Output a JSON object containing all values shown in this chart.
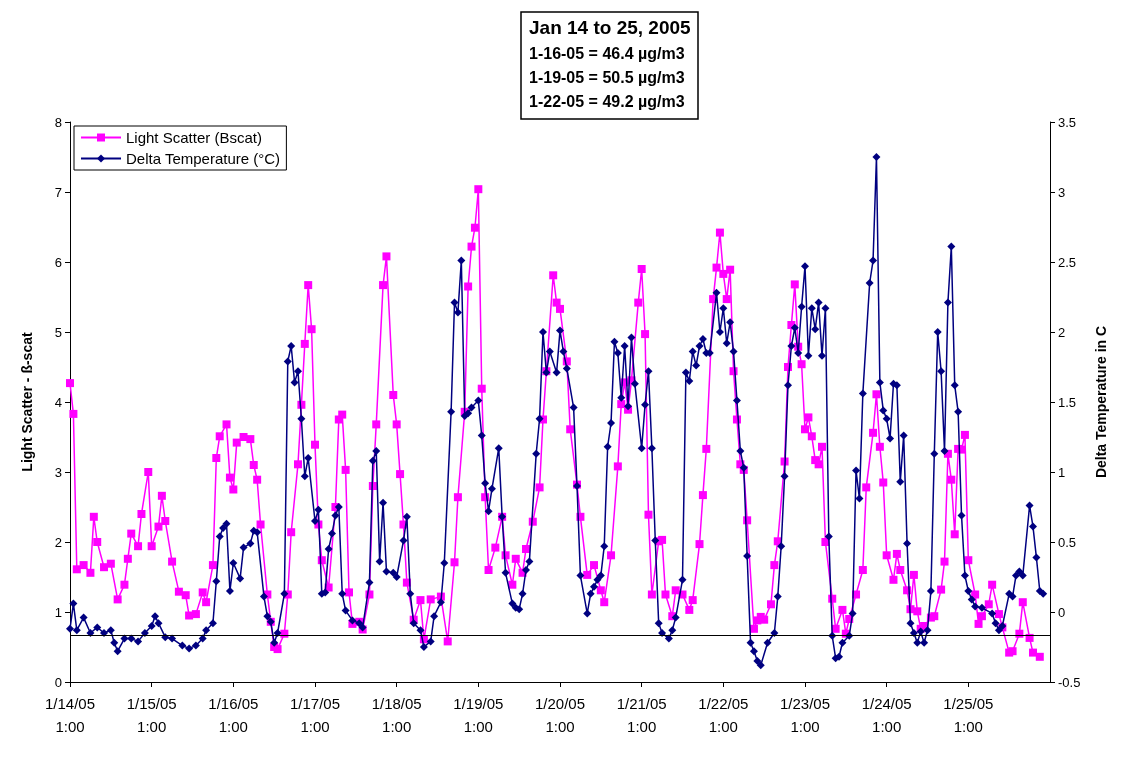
{
  "chart_data": {
    "type": "line",
    "title": "Jan 14 to 25, 2005",
    "subtitle": "1-16-05 = 46.4 µg/m3\n1-19-05 = 50.5 µg/m3\n1-22-05 = 49.2 µg/m3",
    "ylabel": "Light Scatter - ß-scat",
    "y2label": "Delta Temperature in C",
    "legend": "top left",
    "grid": false,
    "xlim": [
      "2005-01-14T01:00",
      "2005-01-26T01:00"
    ],
    "xticks": [
      {
        "value": "2005-01-14T01:00",
        "label": "1/14/05\n1:00"
      },
      {
        "value": "2005-01-15T01:00",
        "label": "1/15/05\n1:00"
      },
      {
        "value": "2005-01-16T01:00",
        "label": "1/16/05\n1:00"
      },
      {
        "value": "2005-01-17T01:00",
        "label": "1/17/05\n1:00"
      },
      {
        "value": "2005-01-18T01:00",
        "label": "1/18/05\n1:00"
      },
      {
        "value": "2005-01-19T01:00",
        "label": "1/19/05\n1:00"
      },
      {
        "value": "2005-01-20T01:00",
        "label": "1/20/05\n1:00"
      },
      {
        "value": "2005-01-21T01:00",
        "label": "1/21/05\n1:00"
      },
      {
        "value": "2005-01-22T01:00",
        "label": "1/22/05\n1:00"
      },
      {
        "value": "2005-01-23T01:00",
        "label": "1/23/05\n1:00"
      },
      {
        "value": "2005-01-24T01:00",
        "label": "1/24/05\n1:00"
      },
      {
        "value": "2005-01-25T01:00",
        "label": "1/25/05\n1:00"
      }
    ],
    "ylim": [
      0,
      8
    ],
    "yticks": [
      0,
      1,
      2,
      3,
      4,
      5,
      6,
      7,
      8
    ],
    "y2lim": [
      -0.5,
      3.5
    ],
    "y2ticks": [
      -0.5,
      0,
      0.5,
      1,
      1.5,
      2,
      2.5,
      3,
      3.5
    ],
    "ref_lines": [
      {
        "axis": "y",
        "value": 0.67,
        "color": "#000000"
      }
    ],
    "series": [
      {
        "name": "Light Scatter (Bscat)",
        "color": "#ff00ff",
        "marker": "square",
        "x": [
          "2005-01-14T01:00",
          "2005-01-14T02:00",
          "2005-01-14T03:00",
          "2005-01-14T05:00",
          "2005-01-14T07:00",
          "2005-01-14T08:00",
          "2005-01-14T09:00",
          "2005-01-14T11:00",
          "2005-01-14T13:00",
          "2005-01-14T15:00",
          "2005-01-14T17:00",
          "2005-01-14T18:00",
          "2005-01-14T19:00",
          "2005-01-14T21:00",
          "2005-01-14T22:00",
          "2005-01-15T00:00",
          "2005-01-15T01:00",
          "2005-01-15T03:00",
          "2005-01-15T04:00",
          "2005-01-15T05:00",
          "2005-01-15T07:00",
          "2005-01-15T09:00",
          "2005-01-15T11:00",
          "2005-01-15T12:00",
          "2005-01-15T14:00",
          "2005-01-15T16:00",
          "2005-01-15T17:00",
          "2005-01-15T19:00",
          "2005-01-15T20:00",
          "2005-01-15T21:00",
          "2005-01-15T23:00",
          "2005-01-16T00:00",
          "2005-01-16T01:00",
          "2005-01-16T02:00",
          "2005-01-16T04:00",
          "2005-01-16T06:00",
          "2005-01-16T07:00",
          "2005-01-16T08:00",
          "2005-01-16T09:00",
          "2005-01-16T11:00",
          "2005-01-16T12:00",
          "2005-01-16T13:00",
          "2005-01-16T14:00",
          "2005-01-16T16:00",
          "2005-01-16T17:00",
          "2005-01-16T18:00",
          "2005-01-16T20:00",
          "2005-01-16T21:00",
          "2005-01-16T22:00",
          "2005-01-16T23:00",
          "2005-01-17T00:00",
          "2005-01-17T01:00",
          "2005-01-17T02:00",
          "2005-01-17T03:00",
          "2005-01-17T05:00",
          "2005-01-17T07:00",
          "2005-01-17T08:00",
          "2005-01-17T09:00",
          "2005-01-17T10:00",
          "2005-01-17T11:00",
          "2005-01-17T12:00",
          "2005-01-17T14:00",
          "2005-01-17T15:00",
          "2005-01-17T17:00",
          "2005-01-17T18:00",
          "2005-01-17T19:00",
          "2005-01-17T21:00",
          "2005-01-17T22:00",
          "2005-01-18T00:00",
          "2005-01-18T01:00",
          "2005-01-18T02:00",
          "2005-01-18T03:00",
          "2005-01-18T04:00",
          "2005-01-18T06:00",
          "2005-01-18T08:00",
          "2005-01-18T09:00",
          "2005-01-18T11:00",
          "2005-01-18T14:00",
          "2005-01-18T16:00",
          "2005-01-18T18:00",
          "2005-01-18T19:00",
          "2005-01-18T21:00",
          "2005-01-18T22:00",
          "2005-01-18T23:00",
          "2005-01-19T00:00",
          "2005-01-19T01:00",
          "2005-01-19T02:00",
          "2005-01-19T03:00",
          "2005-01-19T04:00",
          "2005-01-19T06:00",
          "2005-01-19T08:00",
          "2005-01-19T09:00",
          "2005-01-19T11:00",
          "2005-01-19T12:00",
          "2005-01-19T14:00",
          "2005-01-19T15:00",
          "2005-01-19T17:00",
          "2005-01-19T19:00",
          "2005-01-19T20:00",
          "2005-01-19T21:00",
          "2005-01-19T23:00",
          "2005-01-20T00:00",
          "2005-01-20T01:00",
          "2005-01-20T03:00",
          "2005-01-20T04:00",
          "2005-01-20T06:00",
          "2005-01-20T07:00",
          "2005-01-20T09:00",
          "2005-01-20T11:00",
          "2005-01-20T13:00",
          "2005-01-20T14:00",
          "2005-01-20T16:00",
          "2005-01-20T18:00",
          "2005-01-20T19:00",
          "2005-01-20T20:00",
          "2005-01-20T21:00",
          "2005-01-20T22:00",
          "2005-01-21T00:00",
          "2005-01-21T01:00",
          "2005-01-21T02:00",
          "2005-01-21T03:00",
          "2005-01-21T04:00",
          "2005-01-21T06:00",
          "2005-01-21T07:00",
          "2005-01-21T08:00",
          "2005-01-21T10:00",
          "2005-01-21T11:00",
          "2005-01-21T13:00",
          "2005-01-21T15:00",
          "2005-01-21T16:00",
          "2005-01-21T18:00",
          "2005-01-21T19:00",
          "2005-01-21T20:00",
          "2005-01-21T22:00",
          "2005-01-21T23:00",
          "2005-01-22T00:00",
          "2005-01-22T01:00",
          "2005-01-22T02:00",
          "2005-01-22T03:00",
          "2005-01-22T04:00",
          "2005-01-22T05:00",
          "2005-01-22T06:00",
          "2005-01-22T07:00",
          "2005-01-22T08:00",
          "2005-01-22T10:00",
          "2005-01-22T11:00",
          "2005-01-22T12:00",
          "2005-01-22T13:00",
          "2005-01-22T15:00",
          "2005-01-22T16:00",
          "2005-01-22T17:00",
          "2005-01-22T19:00",
          "2005-01-22T20:00",
          "2005-01-22T21:00",
          "2005-01-22T22:00",
          "2005-01-22T23:00",
          "2005-01-23T00:00",
          "2005-01-23T01:00",
          "2005-01-23T02:00",
          "2005-01-23T03:00",
          "2005-01-23T04:00",
          "2005-01-23T05:00",
          "2005-01-23T06:00",
          "2005-01-23T07:00",
          "2005-01-23T09:00",
          "2005-01-23T10:00",
          "2005-01-23T12:00",
          "2005-01-23T13:00",
          "2005-01-23T14:00",
          "2005-01-23T16:00",
          "2005-01-23T18:00",
          "2005-01-23T19:00",
          "2005-01-23T21:00",
          "2005-01-23T22:00",
          "2005-01-23T23:00",
          "2005-01-24T00:00",
          "2005-01-24T01:00",
          "2005-01-24T03:00",
          "2005-01-24T04:00",
          "2005-01-24T05:00",
          "2005-01-24T07:00",
          "2005-01-24T08:00",
          "2005-01-24T09:00",
          "2005-01-24T10:00",
          "2005-01-24T11:00",
          "2005-01-24T12:00",
          "2005-01-24T14:00",
          "2005-01-24T15:00",
          "2005-01-24T17:00",
          "2005-01-24T18:00",
          "2005-01-24T19:00",
          "2005-01-24T20:00",
          "2005-01-24T21:00",
          "2005-01-24T22:00",
          "2005-01-24T23:00",
          "2005-01-25T00:00",
          "2005-01-25T01:00",
          "2005-01-25T03:00",
          "2005-01-25T04:00",
          "2005-01-25T05:00",
          "2005-01-25T07:00",
          "2005-01-25T08:00",
          "2005-01-25T10:00",
          "2005-01-25T11:00",
          "2005-01-25T13:00",
          "2005-01-25T14:00",
          "2005-01-25T16:00",
          "2005-01-25T17:00",
          "2005-01-25T19:00",
          "2005-01-25T20:00",
          "2005-01-25T22:00"
        ],
        "values": [
          4.27,
          3.83,
          1.61,
          1.67,
          1.56,
          2.36,
          2.0,
          1.64,
          1.69,
          1.18,
          1.39,
          1.76,
          2.12,
          1.94,
          2.4,
          3.0,
          1.94,
          2.22,
          2.66,
          2.3,
          1.72,
          1.29,
          1.24,
          0.95,
          0.97,
          1.28,
          1.14,
          1.67,
          3.2,
          3.51,
          3.68,
          2.92,
          2.75,
          3.42,
          3.5,
          3.47,
          3.1,
          2.89,
          2.25,
          1.25,
          0.86,
          0.5,
          0.47,
          0.69,
          1.25,
          2.14,
          3.11,
          3.96,
          4.83,
          5.67,
          5.04,
          3.39,
          2.25,
          1.74,
          1.35,
          2.5,
          3.75,
          3.82,
          3.03,
          1.28,
          0.83,
          0.86,
          0.75,
          1.25,
          2.8,
          3.68,
          5.67,
          6.08,
          4.1,
          3.68,
          2.97,
          2.25,
          1.42,
          0.89,
          1.17,
          0.61,
          1.18,
          1.22,
          0.58,
          1.71,
          2.64,
          3.86,
          5.65,
          6.22,
          6.49,
          7.04,
          4.19,
          2.64,
          1.6,
          1.92,
          2.36,
          1.81,
          1.39,
          1.76,
          1.56,
          1.9,
          2.29,
          2.78,
          3.75,
          4.44,
          5.81,
          5.42,
          5.33,
          4.58,
          3.61,
          2.82,
          2.36,
          1.53,
          1.67,
          1.31,
          1.14,
          1.81,
          3.08,
          3.97,
          4.28,
          3.89,
          4.31,
          5.42,
          5.9,
          4.97,
          2.39,
          1.25,
          2.01,
          2.03,
          1.25,
          0.94,
          1.31,
          1.25,
          1.03,
          1.17,
          1.97,
          2.67,
          3.33,
          5.47,
          5.92,
          6.42,
          5.83,
          5.47,
          5.89,
          4.44,
          3.75,
          3.11,
          3.03,
          2.31,
          0.76,
          0.88,
          0.93,
          0.89,
          1.11,
          1.67,
          2.01,
          3.15,
          4.5,
          5.1,
          5.68,
          4.79,
          4.54,
          3.61,
          3.78,
          3.51,
          3.17,
          3.11,
          3.36,
          2.0,
          1.19,
          0.76,
          1.03,
          0.69,
          0.9,
          1.25,
          1.6,
          2.78,
          3.56,
          4.11,
          3.36,
          2.85,
          1.81,
          1.46,
          1.83,
          1.6,
          1.31,
          1.04,
          1.53,
          1.01,
          0.76,
          0.8,
          0.92,
          0.94,
          1.32,
          1.72,
          3.26,
          2.89,
          2.11,
          3.33,
          3.32,
          3.53,
          1.74,
          1.25,
          0.83,
          0.94,
          1.11,
          1.39,
          0.97,
          0.78,
          0.42,
          0.44,
          0.69,
          1.14,
          0.63,
          0.42,
          0.36
        ]
      },
      {
        "name": "Delta Temperature (°C)",
        "color": "#000080",
        "marker": "diamond",
        "axis": "y2",
        "x": [
          "2005-01-14T01:00",
          "2005-01-14T02:00",
          "2005-01-14T03:00",
          "2005-01-14T05:00",
          "2005-01-14T07:00",
          "2005-01-14T09:00",
          "2005-01-14T11:00",
          "2005-01-14T13:00",
          "2005-01-14T14:00",
          "2005-01-14T15:00",
          "2005-01-14T17:00",
          "2005-01-14T19:00",
          "2005-01-14T21:00",
          "2005-01-14T23:00",
          "2005-01-15T01:00",
          "2005-01-15T02:00",
          "2005-01-15T03:00",
          "2005-01-15T05:00",
          "2005-01-15T07:00",
          "2005-01-15T10:00",
          "2005-01-15T12:00",
          "2005-01-15T14:00",
          "2005-01-15T16:00",
          "2005-01-15T17:00",
          "2005-01-15T19:00",
          "2005-01-15T20:00",
          "2005-01-15T21:00",
          "2005-01-15T22:00",
          "2005-01-15T23:00",
          "2005-01-16T00:00",
          "2005-01-16T01:00",
          "2005-01-16T03:00",
          "2005-01-16T04:00",
          "2005-01-16T06:00",
          "2005-01-16T07:00",
          "2005-01-16T08:00",
          "2005-01-16T10:00",
          "2005-01-16T11:00",
          "2005-01-16T12:00",
          "2005-01-16T13:00",
          "2005-01-16T14:00",
          "2005-01-16T16:00",
          "2005-01-16T17:00",
          "2005-01-16T18:00",
          "2005-01-16T19:00",
          "2005-01-16T20:00",
          "2005-01-16T21:00",
          "2005-01-16T22:00",
          "2005-01-16T23:00",
          "2005-01-17T01:00",
          "2005-01-17T02:00",
          "2005-01-17T03:00",
          "2005-01-17T04:00",
          "2005-01-17T05:00",
          "2005-01-17T06:00",
          "2005-01-17T07:00",
          "2005-01-17T08:00",
          "2005-01-17T09:00",
          "2005-01-17T10:00",
          "2005-01-17T12:00",
          "2005-01-17T14:00",
          "2005-01-17T15:00",
          "2005-01-17T17:00",
          "2005-01-17T18:00",
          "2005-01-17T19:00",
          "2005-01-17T20:00",
          "2005-01-17T21:00",
          "2005-01-17T22:00",
          "2005-01-18T00:00",
          "2005-01-18T01:00",
          "2005-01-18T03:00",
          "2005-01-18T04:00",
          "2005-01-18T05:00",
          "2005-01-18T06:00",
          "2005-01-18T08:00",
          "2005-01-18T09:00",
          "2005-01-18T11:00",
          "2005-01-18T12:00",
          "2005-01-18T14:00",
          "2005-01-18T15:00",
          "2005-01-18T17:00",
          "2005-01-18T18:00",
          "2005-01-18T19:00",
          "2005-01-18T20:00",
          "2005-01-18T21:00",
          "2005-01-18T22:00",
          "2005-01-18T23:00",
          "2005-01-19T01:00",
          "2005-01-19T02:00",
          "2005-01-19T03:00",
          "2005-01-19T04:00",
          "2005-01-19T05:00",
          "2005-01-19T07:00",
          "2005-01-19T08:00",
          "2005-01-19T09:00",
          "2005-01-19T11:00",
          "2005-01-19T12:00",
          "2005-01-19T13:00",
          "2005-01-19T14:00",
          "2005-01-19T15:00",
          "2005-01-19T16:00",
          "2005-01-19T18:00",
          "2005-01-19T19:00",
          "2005-01-19T20:00",
          "2005-01-19T21:00",
          "2005-01-19T22:00",
          "2005-01-20T00:00",
          "2005-01-20T01:00",
          "2005-01-20T02:00",
          "2005-01-20T03:00",
          "2005-01-20T05:00",
          "2005-01-20T06:00",
          "2005-01-20T07:00",
          "2005-01-20T09:00",
          "2005-01-20T10:00",
          "2005-01-20T11:00",
          "2005-01-20T12:00",
          "2005-01-20T13:00",
          "2005-01-20T14:00",
          "2005-01-20T15:00",
          "2005-01-20T16:00",
          "2005-01-20T17:00",
          "2005-01-20T18:00",
          "2005-01-20T19:00",
          "2005-01-20T20:00",
          "2005-01-20T21:00",
          "2005-01-20T22:00",
          "2005-01-20T23:00",
          "2005-01-21T01:00",
          "2005-01-21T02:00",
          "2005-01-21T03:00",
          "2005-01-21T04:00",
          "2005-01-21T05:00",
          "2005-01-21T06:00",
          "2005-01-21T07:00",
          "2005-01-21T09:00",
          "2005-01-21T10:00",
          "2005-01-21T11:00",
          "2005-01-21T13:00",
          "2005-01-21T14:00",
          "2005-01-21T15:00",
          "2005-01-21T16:00",
          "2005-01-21T17:00",
          "2005-01-21T18:00",
          "2005-01-21T19:00",
          "2005-01-21T20:00",
          "2005-01-21T21:00",
          "2005-01-21T23:00",
          "2005-01-22T00:00",
          "2005-01-22T01:00",
          "2005-01-22T02:00",
          "2005-01-22T03:00",
          "2005-01-22T04:00",
          "2005-01-22T05:00",
          "2005-01-22T06:00",
          "2005-01-22T07:00",
          "2005-01-22T08:00",
          "2005-01-22T09:00",
          "2005-01-22T10:00",
          "2005-01-22T11:00",
          "2005-01-22T12:00",
          "2005-01-22T14:00",
          "2005-01-22T16:00",
          "2005-01-22T17:00",
          "2005-01-22T18:00",
          "2005-01-22T19:00",
          "2005-01-22T20:00",
          "2005-01-22T21:00",
          "2005-01-22T22:00",
          "2005-01-22T23:00",
          "2005-01-23T00:00",
          "2005-01-23T01:00",
          "2005-01-23T02:00",
          "2005-01-23T03:00",
          "2005-01-23T04:00",
          "2005-01-23T05:00",
          "2005-01-23T06:00",
          "2005-01-23T07:00",
          "2005-01-23T08:00",
          "2005-01-23T09:00",
          "2005-01-23T10:00",
          "2005-01-23T11:00",
          "2005-01-23T12:00",
          "2005-01-23T14:00",
          "2005-01-23T15:00",
          "2005-01-23T16:00",
          "2005-01-23T17:00",
          "2005-01-23T18:00",
          "2005-01-23T20:00",
          "2005-01-23T21:00",
          "2005-01-23T22:00",
          "2005-01-23T23:00",
          "2005-01-24T00:00",
          "2005-01-24T01:00",
          "2005-01-24T02:00",
          "2005-01-24T03:00",
          "2005-01-24T04:00",
          "2005-01-24T05:00",
          "2005-01-24T06:00",
          "2005-01-24T07:00",
          "2005-01-24T08:00",
          "2005-01-24T09:00",
          "2005-01-24T10:00",
          "2005-01-24T11:00",
          "2005-01-24T12:00",
          "2005-01-24T13:00",
          "2005-01-24T14:00",
          "2005-01-24T15:00",
          "2005-01-24T16:00",
          "2005-01-24T17:00",
          "2005-01-24T18:00",
          "2005-01-24T19:00",
          "2005-01-24T20:00",
          "2005-01-24T21:00",
          "2005-01-24T22:00",
          "2005-01-24T23:00",
          "2005-01-25T00:00",
          "2005-01-25T01:00",
          "2005-01-25T02:00",
          "2005-01-25T03:00",
          "2005-01-25T05:00",
          "2005-01-25T08:00",
          "2005-01-25T09:00",
          "2005-01-25T10:00",
          "2005-01-25T11:00",
          "2005-01-25T13:00",
          "2005-01-25T14:00",
          "2005-01-25T15:00",
          "2005-01-25T16:00",
          "2005-01-25T17:00",
          "2005-01-25T19:00",
          "2005-01-25T20:00",
          "2005-01-25T21:00",
          "2005-01-25T22:00",
          "2005-01-25T23:00"
        ],
        "values": [
          -0.12,
          0.06,
          -0.13,
          -0.04,
          -0.15,
          -0.11,
          -0.15,
          -0.13,
          -0.22,
          -0.28,
          -0.19,
          -0.19,
          -0.21,
          -0.15,
          -0.1,
          -0.03,
          -0.08,
          -0.18,
          -0.19,
          -0.24,
          -0.26,
          -0.24,
          -0.19,
          -0.13,
          -0.08,
          0.22,
          0.54,
          0.6,
          0.63,
          0.15,
          0.35,
          0.24,
          0.46,
          0.49,
          0.58,
          0.57,
          0.11,
          -0.03,
          -0.07,
          -0.22,
          -0.15,
          0.13,
          1.79,
          1.9,
          1.64,
          1.72,
          1.38,
          0.97,
          1.1,
          0.65,
          0.73,
          0.13,
          0.14,
          0.45,
          0.56,
          0.69,
          0.75,
          0.13,
          0.01,
          -0.06,
          -0.08,
          -0.11,
          0.21,
          1.08,
          1.15,
          0.36,
          0.78,
          0.29,
          0.28,
          0.25,
          0.51,
          0.68,
          0.13,
          -0.08,
          -0.13,
          -0.25,
          -0.21,
          -0.03,
          0.07,
          0.35,
          1.43,
          2.21,
          2.14,
          2.51,
          1.4,
          1.42,
          1.46,
          1.51,
          1.26,
          0.92,
          0.72,
          0.88,
          1.17,
          0.68,
          0.28,
          0.06,
          0.03,
          0.02,
          0.13,
          0.3,
          0.36,
          1.13,
          1.38,
          2.0,
          1.71,
          1.86,
          1.71,
          2.01,
          1.86,
          1.74,
          1.46,
          0.9,
          0.26,
          -0.01,
          0.13,
          0.18,
          0.23,
          0.26,
          0.47,
          1.18,
          1.35,
          1.93,
          1.85,
          1.53,
          1.9,
          1.47,
          1.96,
          1.63,
          1.17,
          1.48,
          1.72,
          1.17,
          0.51,
          -0.08,
          -0.15,
          -0.19,
          -0.13,
          -0.04,
          0.23,
          1.71,
          1.65,
          1.86,
          1.76,
          1.9,
          1.95,
          1.85,
          1.85,
          2.28,
          2.0,
          2.17,
          1.92,
          2.07,
          1.86,
          1.51,
          1.15,
          1.03,
          0.4,
          -0.22,
          -0.28,
          -0.35,
          -0.38,
          -0.22,
          -0.15,
          0.11,
          0.47,
          0.97,
          1.62,
          1.9,
          2.03,
          1.85,
          2.18,
          2.47,
          1.83,
          2.17,
          2.02,
          2.21,
          1.83,
          2.17,
          0.54,
          -0.17,
          -0.33,
          -0.32,
          -0.22,
          -0.17,
          -0.01,
          1.01,
          0.81,
          1.56,
          2.35,
          2.51,
          3.25,
          1.64,
          1.44,
          1.38,
          1.24,
          1.63,
          1.62,
          0.93,
          1.26,
          0.49,
          -0.08,
          -0.15,
          -0.22,
          -0.14,
          -0.22,
          -0.13,
          0.15,
          1.13,
          2.0,
          1.72,
          1.15,
          2.21,
          2.61,
          1.62,
          1.43,
          0.69,
          0.26,
          0.15,
          0.09,
          0.04,
          0.03,
          -0.01,
          -0.08,
          -0.13,
          -0.1,
          0.13,
          0.11,
          0.26,
          0.29,
          0.26,
          0.76,
          0.61,
          0.39,
          0.15,
          0.13
        ]
      }
    ]
  }
}
